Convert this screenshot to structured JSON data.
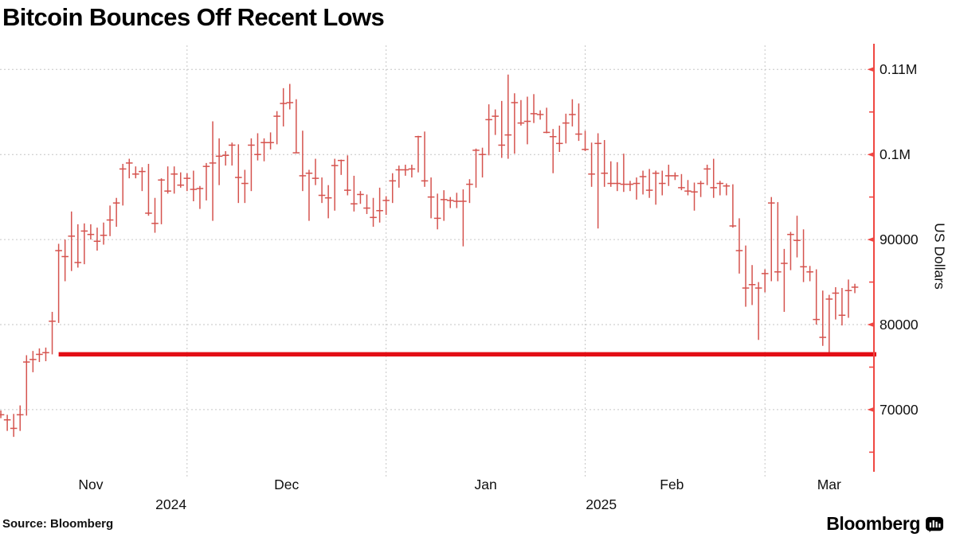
{
  "title": "Bitcoin Bounces Off Recent Lows",
  "source": "Source:  Bloomberg",
  "logo": {
    "wordmark": "Bloomberg"
  },
  "colors": {
    "bar": "#d5534e",
    "axis": "#ef4742",
    "reference_line": "#e30e15",
    "grid": "#c6c6c6",
    "text": "#111111"
  },
  "chart_data": {
    "type": "bar",
    "subtype": "ohlc-hlc-bars",
    "title": "Bitcoin Bounces Off Recent Lows",
    "ylabel": "US Dollars",
    "grid": "dotted major gridlines, horizontal at y ticks and vertical at month starts",
    "legend": "none",
    "x_axis": {
      "start_date": "2024-11-01",
      "end_date": "2025-03-15",
      "month_labels": [
        {
          "label": "Nov",
          "center_day": 15
        },
        {
          "label": "Dec",
          "center_day": 45.5
        },
        {
          "label": "Jan",
          "center_day": 76.5
        },
        {
          "label": "Feb",
          "center_day": 105.5
        },
        {
          "label": "Mar",
          "center_day": 130
        }
      ],
      "year_labels": [
        {
          "label": "2024",
          "center_day": 27.5
        },
        {
          "label": "2025",
          "center_day": 94.5
        }
      ],
      "month_boundary_days": [
        30,
        61,
        92,
        120
      ]
    },
    "y_axis": {
      "side": "right",
      "ylim": [
        62700,
        113000
      ],
      "ticks": [
        {
          "label": "0.11M",
          "value": 110000
        },
        {
          "label": "0.1M",
          "value": 100000
        },
        {
          "label": "90000",
          "value": 90000
        },
        {
          "label": "80000",
          "value": 80000
        },
        {
          "label": "70000",
          "value": 70000
        }
      ],
      "minor_tick_values": [
        105000,
        95000,
        85000,
        75000,
        65000
      ]
    },
    "reference_line": {
      "value": 76500,
      "from_day": 10
    },
    "series": {
      "name": "Bitcoin price",
      "unit": "USD",
      "fields": [
        "high",
        "low",
        "close"
      ],
      "days": [
        [
          71600,
          68800,
          69500
        ],
        [
          69900,
          69000,
          69400
        ],
        [
          69400,
          67500,
          68800
        ],
        [
          69500,
          66800,
          67800
        ],
        [
          70500,
          67500,
          69400
        ],
        [
          76400,
          69300,
          75600
        ],
        [
          76900,
          74400,
          75900
        ],
        [
          77200,
          75600,
          76500
        ],
        [
          77300,
          75700,
          76700
        ],
        [
          81500,
          76500,
          80400
        ],
        [
          89500,
          80200,
          88700
        ],
        [
          90000,
          85100,
          88000
        ],
        [
          93300,
          86300,
          90400
        ],
        [
          91800,
          86700,
          87300
        ],
        [
          91900,
          87100,
          91000
        ],
        [
          91800,
          90000,
          90600
        ],
        [
          91400,
          88700,
          89800
        ],
        [
          92000,
          89400,
          90500
        ],
        [
          94000,
          90400,
          92300
        ],
        [
          94900,
          91500,
          94300
        ],
        [
          98900,
          94000,
          98300
        ],
        [
          99500,
          97200,
          99000
        ],
        [
          98600,
          97200,
          97700
        ],
        [
          98500,
          95700,
          98000
        ],
        [
          98900,
          92800,
          93100
        ],
        [
          94900,
          90800,
          91900
        ],
        [
          97200,
          91800,
          97000
        ],
        [
          98600,
          95400,
          95700
        ],
        [
          98600,
          95400,
          97700
        ],
        [
          97900,
          96100,
          96400
        ],
        [
          97800,
          95700,
          97200
        ],
        [
          98100,
          94500,
          95900
        ],
        [
          96300,
          93600,
          96000
        ],
        [
          99000,
          94600,
          98600
        ],
        [
          103900,
          92200,
          99000
        ],
        [
          101900,
          96400,
          99800
        ],
        [
          100400,
          98700,
          99900
        ],
        [
          101400,
          98700,
          101100
        ],
        [
          101200,
          94300,
          97300
        ],
        [
          98200,
          94300,
          96600
        ],
        [
          101900,
          95700,
          101100
        ],
        [
          102500,
          99300,
          100000
        ],
        [
          101900,
          99200,
          101400
        ],
        [
          102600,
          100600,
          101400
        ],
        [
          105100,
          101200,
          104500
        ],
        [
          107800,
          103300,
          106000
        ],
        [
          108300,
          105300,
          106100
        ],
        [
          106500,
          100200,
          100200
        ],
        [
          102800,
          95700,
          97500
        ],
        [
          98200,
          92200,
          97800
        ],
        [
          99500,
          96400,
          97200
        ],
        [
          97300,
          94300,
          95200
        ],
        [
          96400,
          92500,
          94900
        ],
        [
          99500,
          93400,
          98700
        ],
        [
          99400,
          97600,
          99300
        ],
        [
          99900,
          95200,
          95800
        ],
        [
          97500,
          93300,
          94200
        ],
        [
          95700,
          94200,
          95300
        ],
        [
          95300,
          93000,
          93700
        ],
        [
          94900,
          91500,
          92600
        ],
        [
          96100,
          92000,
          93400
        ],
        [
          95100,
          92900,
          94600
        ],
        [
          97800,
          94300,
          96900
        ],
        [
          98700,
          96100,
          98200
        ],
        [
          98800,
          97500,
          98200
        ],
        [
          98800,
          97300,
          98300
        ],
        [
          102200,
          97900,
          102100
        ],
        [
          102700,
          96200,
          96900
        ],
        [
          97300,
          92500,
          95000
        ],
        [
          95400,
          91200,
          92500
        ],
        [
          95800,
          92200,
          94700
        ],
        [
          95000,
          93700,
          94600
        ],
        [
          95500,
          93700,
          94500
        ],
        [
          95900,
          89200,
          94500
        ],
        [
          97100,
          94300,
          96500
        ],
        [
          100700,
          96100,
          100500
        ],
        [
          100800,
          97300,
          100000
        ],
        [
          105900,
          99900,
          104100
        ],
        [
          105300,
          102300,
          104500
        ],
        [
          106300,
          99600,
          101100
        ],
        [
          109400,
          99500,
          102300
        ],
        [
          107200,
          100100,
          106100
        ],
        [
          106400,
          103400,
          103700
        ],
        [
          106800,
          101200,
          103900
        ],
        [
          107100,
          103700,
          104800
        ],
        [
          105200,
          104100,
          104700
        ],
        [
          105500,
          102500,
          102600
        ],
        [
          103000,
          97800,
          102100
        ],
        [
          103400,
          100300,
          101300
        ],
        [
          104800,
          101300,
          103700
        ],
        [
          106500,
          103300,
          104700
        ],
        [
          106000,
          101600,
          102400
        ],
        [
          102800,
          100400,
          100600
        ],
        [
          101400,
          96200,
          97700
        ],
        [
          102500,
          91300,
          101300
        ],
        [
          101700,
          96200,
          97800
        ],
        [
          99200,
          96200,
          96600
        ],
        [
          99100,
          95700,
          96600
        ],
        [
          100100,
          95600,
          96500
        ],
        [
          96900,
          95700,
          96500
        ],
        [
          97300,
          94700,
          96600
        ],
        [
          98100,
          95300,
          97400
        ],
        [
          98300,
          94900,
          95800
        ],
        [
          98100,
          94100,
          97800
        ],
        [
          98100,
          95200,
          96600
        ],
        [
          98800,
          96300,
          97500
        ],
        [
          97900,
          97000,
          97500
        ],
        [
          97700,
          95800,
          96100
        ],
        [
          97000,
          95200,
          95700
        ],
        [
          96700,
          93400,
          95600
        ],
        [
          96900,
          95000,
          96600
        ],
        [
          98800,
          96400,
          98300
        ],
        [
          99500,
          94900,
          96100
        ],
        [
          96900,
          95200,
          96600
        ],
        [
          96600,
          95200,
          96300
        ],
        [
          96500,
          91400,
          91600
        ],
        [
          92500,
          86000,
          88700
        ],
        [
          89300,
          82100,
          84300
        ],
        [
          87000,
          82300,
          84700
        ],
        [
          85000,
          78200,
          84300
        ],
        [
          86500,
          83800,
          86000
        ],
        [
          95000,
          85100,
          94300
        ],
        [
          94400,
          85100,
          86200
        ],
        [
          88900,
          81500,
          87200
        ],
        [
          90900,
          86400,
          90600
        ],
        [
          92800,
          87900,
          89900
        ],
        [
          91200,
          85000,
          86800
        ],
        [
          86900,
          85100,
          86200
        ],
        [
          86500,
          80000,
          80600
        ],
        [
          84000,
          77500,
          78500
        ],
        [
          83500,
          76600,
          83000
        ],
        [
          84400,
          80600,
          83700
        ],
        [
          84300,
          79900,
          81100
        ],
        [
          85300,
          80800,
          84000
        ],
        [
          84800,
          83700,
          84400
        ]
      ]
    }
  }
}
